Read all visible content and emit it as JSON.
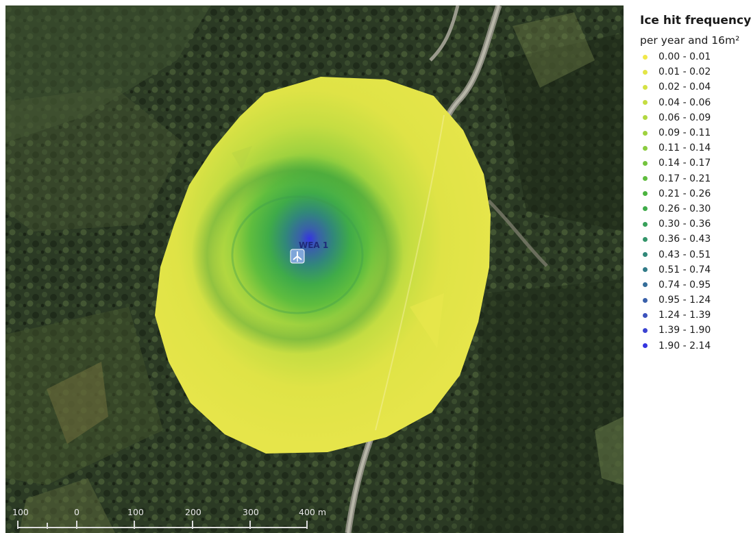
{
  "legend": {
    "title": "Ice hit frequency",
    "subtitle": "per year and 16m²",
    "classes": [
      {
        "label": "0.00 - 0.01",
        "color": "#f1e84a"
      },
      {
        "label": "0.01 - 0.02",
        "color": "#e3e547"
      },
      {
        "label": "0.02 - 0.04",
        "color": "#d5e244"
      },
      {
        "label": "0.04 - 0.06",
        "color": "#c5dd42"
      },
      {
        "label": "0.06 - 0.09",
        "color": "#b2d840"
      },
      {
        "label": "0.09 - 0.11",
        "color": "#9fd23f"
      },
      {
        "label": "0.11 - 0.14",
        "color": "#8acc3f"
      },
      {
        "label": "0.14 - 0.17",
        "color": "#74c43e"
      },
      {
        "label": "0.17 - 0.21",
        "color": "#5fbd3e"
      },
      {
        "label": "0.21 - 0.26",
        "color": "#4bb43f"
      },
      {
        "label": "0.26 - 0.30",
        "color": "#3fab49"
      },
      {
        "label": "0.30 - 0.36",
        "color": "#38a05a"
      },
      {
        "label": "0.36 - 0.43",
        "color": "#34956a"
      },
      {
        "label": "0.43 - 0.51",
        "color": "#318879"
      },
      {
        "label": "0.51 - 0.74",
        "color": "#327b88"
      },
      {
        "label": "0.74 - 0.95",
        "color": "#356d99"
      },
      {
        "label": "0.95 - 1.24",
        "color": "#3960aa"
      },
      {
        "label": "1.24 - 1.39",
        "color": "#3c52bd"
      },
      {
        "label": "1.39 - 1.90",
        "color": "#3b43d1"
      },
      {
        "label": "1.90 - 2.14",
        "color": "#3535e0"
      }
    ]
  },
  "map": {
    "turbine_label": "WEA 1",
    "turbine_icon": "wind-turbine-icon"
  },
  "scale_bar": {
    "labels": [
      "100",
      "0",
      "100",
      "200",
      "300",
      "400 m"
    ]
  }
}
